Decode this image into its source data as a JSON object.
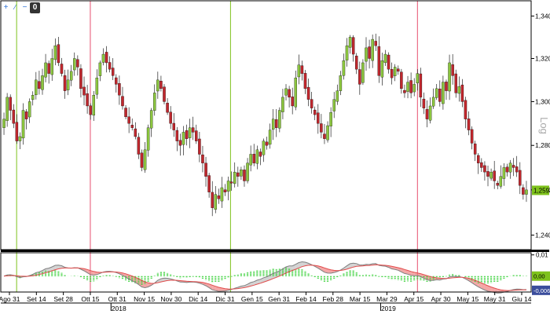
{
  "toolbar": {
    "buttons": [
      "+",
      "∕",
      "−"
    ],
    "badge": "0"
  },
  "chart_data": [
    {
      "type": "candlestick",
      "scale": "log",
      "scale_label": "Log",
      "ylim": [
        1.235,
        1.345
      ],
      "grid": false,
      "y_ticks": [
        "1,2400",
        "1,2600",
        "1,2800",
        "1,3000",
        "1,3200",
        "1,3400"
      ],
      "last_price": {
        "value": 1.2598,
        "label": "1,2598",
        "color": "#7ec21c"
      },
      "x_ticks": [
        "Ago 31",
        "Set 14",
        "Set 28",
        "Ott 15",
        "Ott 31",
        "Nov 15",
        "Nov 30",
        "Dic 14",
        "Dic 31",
        "Gen 15",
        "Gen 31",
        "Feb 14",
        "Feb 28",
        "Mar 15",
        "Mar 29",
        "Apr 15",
        "Apr 30",
        "May 15",
        "May 31",
        "Giu 14"
      ],
      "year_labels": [
        "2018",
        "2019"
      ],
      "vertical_markers": [
        {
          "at": "Set 03",
          "color": "#7ec21c"
        },
        {
          "at": "Ott 15",
          "color": "#e8506e"
        },
        {
          "at": "Gen 03",
          "color": "#7ec21c"
        },
        {
          "at": "Apr 17",
          "color": "#e8506e"
        }
      ],
      "up_color": "#8cc63f",
      "down_color": "#c0272d",
      "closes": [
        1.292,
        1.302,
        1.296,
        1.29,
        1.282,
        1.284,
        1.296,
        1.292,
        1.3,
        1.303,
        1.31,
        1.306,
        1.312,
        1.318,
        1.313,
        1.32,
        1.326,
        1.318,
        1.313,
        1.305,
        1.31,
        1.314,
        1.32,
        1.316,
        1.306,
        1.303,
        1.298,
        1.294,
        1.303,
        1.311,
        1.318,
        1.322,
        1.318,
        1.315,
        1.312,
        1.308,
        1.303,
        1.298,
        1.293,
        1.29,
        1.288,
        1.284,
        1.276,
        1.27,
        1.278,
        1.288,
        1.296,
        1.304,
        1.31,
        1.306,
        1.3,
        1.295,
        1.29,
        1.287,
        1.282,
        1.28,
        1.286,
        1.283,
        1.288,
        1.286,
        1.282,
        1.276,
        1.272,
        1.266,
        1.259,
        1.252,
        1.258,
        1.256,
        1.261,
        1.259,
        1.264,
        1.263,
        1.268,
        1.266,
        1.269,
        1.264,
        1.272,
        1.276,
        1.272,
        1.278,
        1.275,
        1.282,
        1.28,
        1.287,
        1.292,
        1.288,
        1.296,
        1.302,
        1.306,
        1.302,
        1.298,
        1.311,
        1.317,
        1.313,
        1.306,
        1.301,
        1.297,
        1.294,
        1.29,
        1.286,
        1.283,
        1.289,
        1.295,
        1.301,
        1.305,
        1.312,
        1.319,
        1.326,
        1.33,
        1.322,
        1.315,
        1.308,
        1.318,
        1.325,
        1.32,
        1.329,
        1.326,
        1.312,
        1.319,
        1.322,
        1.315,
        1.311,
        1.316,
        1.314,
        1.306,
        1.304,
        1.309,
        1.304,
        1.308,
        1.313,
        1.302,
        1.297,
        1.292,
        1.298,
        1.302,
        1.306,
        1.3,
        1.309,
        1.305,
        1.318,
        1.312,
        1.304,
        1.307,
        1.3,
        1.292,
        1.287,
        1.281,
        1.276,
        1.272,
        1.27,
        1.268,
        1.266,
        1.268,
        1.264,
        1.262,
        1.266,
        1.27,
        1.268,
        1.272,
        1.27,
        1.268,
        1.262,
        1.258,
        1.26
      ]
    },
    {
      "type": "line",
      "series": [
        {
          "color": "#7f7f7f"
        },
        {
          "color": "#e14b4b"
        }
      ],
      "histogram_color": "#3fd23f",
      "ylim": [
        -0.0075,
        0.011
      ],
      "y_ticks": [
        "0,01"
      ],
      "value_tags": [
        {
          "label": "0,00",
          "value": 0.0,
          "color": "#7ec21c"
        },
        {
          "label": "-0,0067",
          "value": -0.0067,
          "color": "#3a4d9c"
        }
      ]
    }
  ]
}
